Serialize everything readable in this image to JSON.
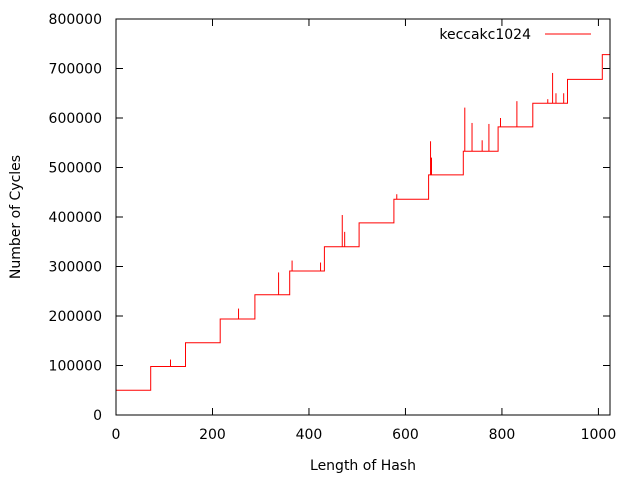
{
  "chart_data": {
    "type": "line",
    "title": "",
    "xlabel": "Length of Hash",
    "ylabel": "Number of Cycles",
    "xlim": [
      0,
      1024
    ],
    "ylim": [
      0,
      800000
    ],
    "x_ticks": [
      0,
      200,
      400,
      600,
      800,
      1000
    ],
    "y_ticks": [
      0,
      100000,
      200000,
      300000,
      400000,
      500000,
      600000,
      700000,
      800000
    ],
    "x_tick_labels": [
      "0",
      "200",
      "400",
      "600",
      "800",
      "1000"
    ],
    "y_tick_labels": [
      "0",
      "100000",
      "200000",
      "300000",
      "400000",
      "500000",
      "600000",
      "700000",
      "800000"
    ],
    "grid": false,
    "legend_position": "top-right",
    "series": [
      {
        "name": "keccakc1024",
        "color": "#ff0000",
        "x": [
          0,
          72,
          72,
          144,
          144,
          216,
          216,
          288,
          288,
          360,
          360,
          432,
          432,
          504,
          504,
          576,
          576,
          648,
          648,
          720,
          720,
          792,
          792,
          864,
          864,
          936,
          936,
          1008,
          1008,
          1024
        ],
        "y": [
          50000,
          50000,
          98000,
          98000,
          146000,
          146000,
          194000,
          194000,
          243000,
          243000,
          291000,
          291000,
          340000,
          340000,
          388000,
          388000,
          436000,
          436000,
          485000,
          485000,
          533000,
          533000,
          582000,
          582000,
          630000,
          630000,
          678000,
          678000,
          728000,
          728000
        ]
      }
    ],
    "spikes": [
      {
        "x": 113,
        "y": 112000
      },
      {
        "x": 254,
        "y": 215000
      },
      {
        "x": 337,
        "y": 288000
      },
      {
        "x": 365,
        "y": 312000
      },
      {
        "x": 424,
        "y": 308000
      },
      {
        "x": 469,
        "y": 404000
      },
      {
        "x": 474,
        "y": 370000
      },
      {
        "x": 582,
        "y": 446000
      },
      {
        "x": 652,
        "y": 553000
      },
      {
        "x": 654,
        "y": 520000
      },
      {
        "x": 723,
        "y": 621000
      },
      {
        "x": 738,
        "y": 590000
      },
      {
        "x": 759,
        "y": 555000
      },
      {
        "x": 773,
        "y": 588000
      },
      {
        "x": 797,
        "y": 600000
      },
      {
        "x": 831,
        "y": 634000
      },
      {
        "x": 895,
        "y": 638000
      },
      {
        "x": 905,
        "y": 691000
      },
      {
        "x": 912,
        "y": 650000
      },
      {
        "x": 928,
        "y": 650000
      }
    ]
  }
}
